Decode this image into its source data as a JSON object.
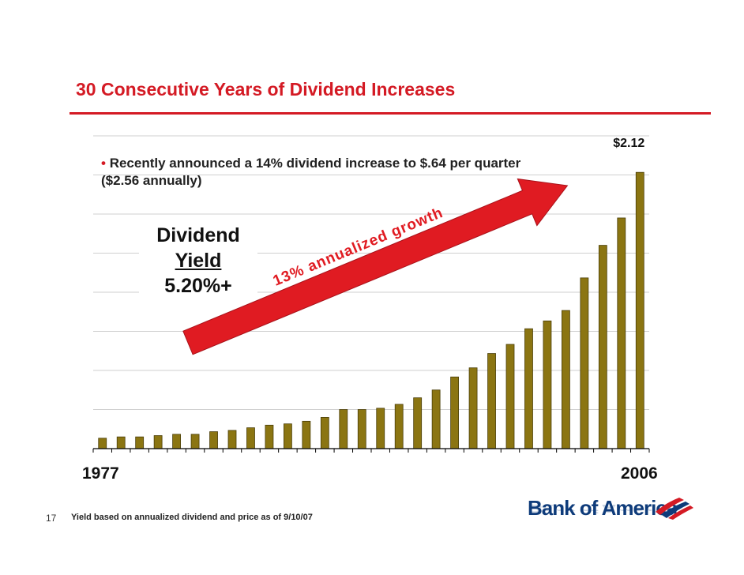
{
  "slide": {
    "title": "30 Consecutive Years of Dividend Increases",
    "bullet_marker": "•",
    "bullet": "Recently announced a 14% dividend increase to $.64 per quarter ($2.56 annually)",
    "yield_label_1": "Dividend",
    "yield_label_2": "Yield",
    "yield_value": "5.20%+",
    "arrow_label": "13% annualized growth",
    "page_number": "17",
    "footnote": "Yield based on annualized dividend and price as of 9/10/07",
    "logo_text": "Bank of America",
    "logo_icon": "bank-of-america-flag-icon"
  },
  "colors": {
    "title": "#d41a24",
    "bar_fill": "#8b7512",
    "arrow": "#e01b22",
    "logo": "#0e3b7a"
  },
  "chart_data": {
    "type": "bar",
    "title": "",
    "xlabel": "",
    "ylabel": "",
    "grid": true,
    "categories_labeled": [
      "1977",
      "2006"
    ],
    "first_category": "1977",
    "last_category": "2006",
    "last_value_label": "$2.12",
    "ylim": [
      0,
      2.4
    ],
    "values": [
      0.08,
      0.09,
      0.09,
      0.1,
      0.11,
      0.11,
      0.13,
      0.14,
      0.16,
      0.18,
      0.19,
      0.21,
      0.24,
      0.3,
      0.3,
      0.31,
      0.34,
      0.39,
      0.45,
      0.55,
      0.62,
      0.73,
      0.8,
      0.92,
      0.98,
      1.06,
      1.31,
      1.56,
      1.77,
      2.12
    ]
  }
}
